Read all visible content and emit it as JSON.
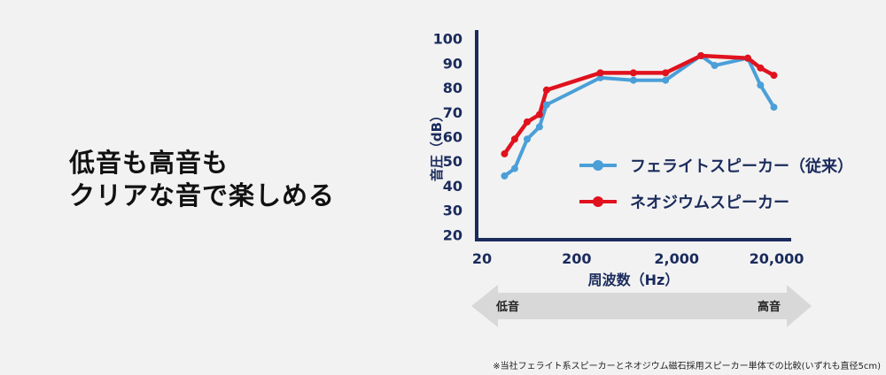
{
  "headline": {
    "line1": "低音も高音も",
    "line2": "クリアな音で楽しめる"
  },
  "footnote": "※当社フェライト系スピーカーとネオジウム磁石採用スピーカー単体での比較(いずれも直径5cm)",
  "range_arrow": {
    "low": "低音",
    "high": "高音"
  },
  "colors": {
    "axis": "#1a2b5c",
    "ferrite": "#4a9fd8",
    "neodymium": "#e0121e",
    "arrow": "#d8d8d8"
  },
  "chart_data": {
    "type": "line",
    "xlabel": "周波数（Hz）",
    "ylabel": "音圧（dB）",
    "x_scale": "log",
    "xlim": [
      20,
      28000
    ],
    "ylim": [
      18,
      102
    ],
    "x_ticks": [
      {
        "value": 20,
        "label": "20"
      },
      {
        "value": 200,
        "label": "200"
      },
      {
        "value": 2000,
        "label": "2,000"
      },
      {
        "value": 20000,
        "label": "20,000"
      }
    ],
    "y_ticks": [
      20,
      30,
      40,
      50,
      60,
      70,
      80,
      90,
      100
    ],
    "legend_position": "right",
    "series": [
      {
        "name": "フェライトスピーカー（従来）",
        "color": "#4a9fd8",
        "x": [
          38,
          48,
          64,
          85,
          100,
          345,
          740,
          1550,
          3500,
          4800,
          10300,
          13800,
          18800
        ],
        "y": [
          44,
          47,
          59,
          64,
          73,
          84,
          83,
          83,
          93,
          89,
          92,
          81,
          72
        ]
      },
      {
        "name": "ネオジウムスピーカー",
        "color": "#e0121e",
        "x": [
          38,
          48,
          64,
          85,
          100,
          345,
          740,
          1550,
          3500,
          10300,
          13800,
          18800
        ],
        "y": [
          53,
          59,
          66,
          69,
          79,
          86,
          86,
          86,
          93,
          92,
          88,
          85
        ]
      }
    ]
  }
}
